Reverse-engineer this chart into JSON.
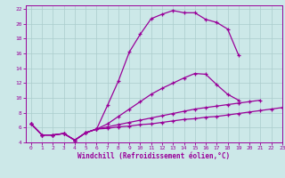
{
  "xlabel": "Windchill (Refroidissement éolien,°C)",
  "xlim": [
    -0.5,
    23
  ],
  "ylim": [
    4,
    22.5
  ],
  "xticks": [
    0,
    1,
    2,
    3,
    4,
    5,
    6,
    7,
    8,
    9,
    10,
    11,
    12,
    13,
    14,
    15,
    16,
    17,
    18,
    19,
    20,
    21,
    22,
    23
  ],
  "yticks": [
    4,
    6,
    8,
    10,
    12,
    14,
    16,
    18,
    20,
    22
  ],
  "bg_color": "#cce8e8",
  "line_color": "#990099",
  "grid_color": "#aacccc",
  "lines": [
    {
      "x": [
        0,
        1,
        2,
        3,
        4,
        5,
        6,
        7,
        8,
        9,
        10,
        11,
        12,
        13,
        14,
        15,
        16,
        17,
        18,
        19
      ],
      "y": [
        6.5,
        5.0,
        5.0,
        5.2,
        4.3,
        5.3,
        5.8,
        9.0,
        12.3,
        16.2,
        18.6,
        20.7,
        21.3,
        21.8,
        21.5,
        21.5,
        20.6,
        20.2,
        19.3,
        15.8
      ]
    },
    {
      "x": [
        0,
        1,
        2,
        3,
        4,
        5,
        6,
        7,
        8,
        9,
        10,
        11,
        12,
        13,
        14,
        15,
        16,
        17,
        18,
        19,
        20,
        21,
        22,
        23
      ],
      "y": [
        6.5,
        5.0,
        5.0,
        5.2,
        4.3,
        5.3,
        5.8,
        6.5,
        7.5,
        8.5,
        9.5,
        10.5,
        11.3,
        12.0,
        12.7,
        13.3,
        13.2,
        11.8,
        10.5,
        9.7,
        null,
        null,
        null,
        null
      ]
    },
    {
      "x": [
        0,
        1,
        2,
        3,
        4,
        5,
        6,
        7,
        8,
        9,
        10,
        11,
        12,
        13,
        14,
        15,
        16,
        17,
        18,
        19,
        20,
        21,
        22,
        23
      ],
      "y": [
        6.5,
        5.0,
        5.0,
        5.2,
        4.3,
        5.3,
        5.8,
        6.1,
        6.4,
        6.7,
        7.0,
        7.3,
        7.6,
        7.9,
        8.2,
        8.5,
        8.7,
        8.9,
        9.1,
        9.3,
        9.5,
        9.7,
        null,
        null
      ]
    },
    {
      "x": [
        0,
        1,
        2,
        3,
        4,
        5,
        6,
        7,
        8,
        9,
        10,
        11,
        12,
        13,
        14,
        15,
        16,
        17,
        18,
        19,
        20,
        21,
        22,
        23
      ],
      "y": [
        6.5,
        5.0,
        5.0,
        5.2,
        4.3,
        5.3,
        5.8,
        5.9,
        6.1,
        6.2,
        6.4,
        6.5,
        6.7,
        6.9,
        7.1,
        7.2,
        7.4,
        7.5,
        7.7,
        7.9,
        8.1,
        8.3,
        8.5,
        8.7
      ]
    }
  ],
  "line_width": 0.9,
  "marker_size": 3.5
}
